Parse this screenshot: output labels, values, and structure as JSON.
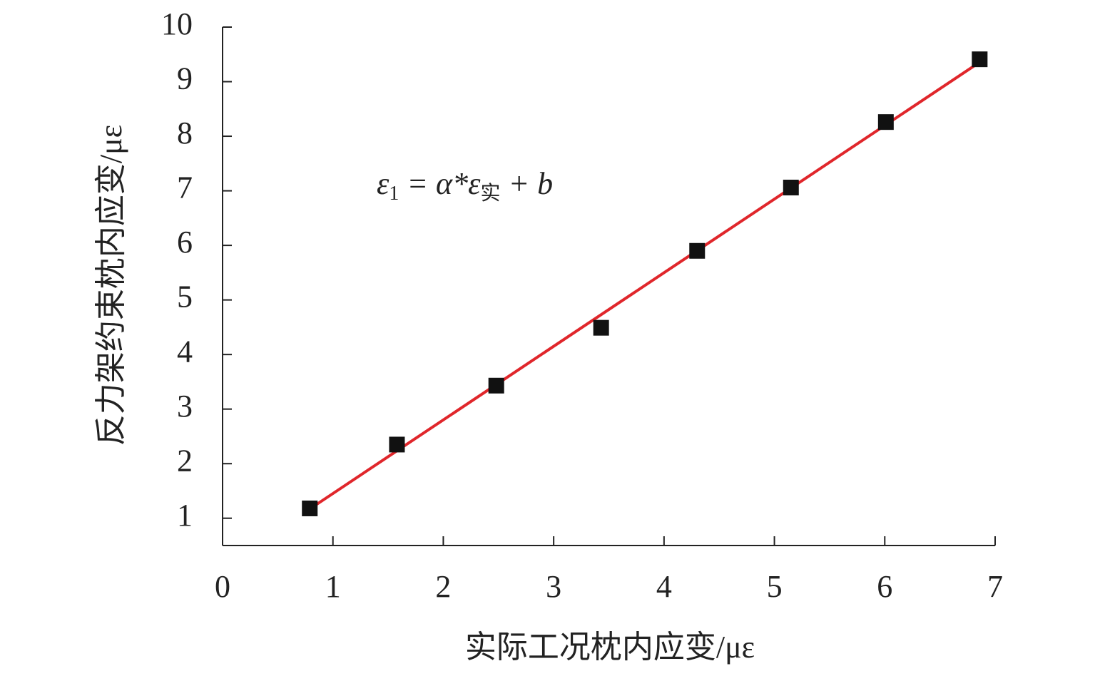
{
  "chart_data": {
    "type": "scatter",
    "x_label": "实际工况枕内应变/με",
    "y_label": "反力架约束枕内应变/με",
    "annotation": [
      "ε",
      "1",
      " = α*ε",
      "实",
      " + b"
    ],
    "series": [
      {
        "color": "#111111",
        "x": [
          0.79,
          1.58,
          2.48,
          3.43,
          4.3,
          5.15,
          6.01,
          6.86
        ],
        "values": [
          1.18,
          2.35,
          3.43,
          4.49,
          5.9,
          7.06,
          8.26,
          9.41
        ]
      }
    ],
    "fit": {
      "color": "#e0262b",
      "x": [
        0.79,
        6.87
      ],
      "values": [
        1.17,
        9.37
      ]
    },
    "xlim": [
      0,
      7
    ],
    "xticks": [
      0,
      1,
      2,
      3,
      4,
      5,
      6,
      7
    ],
    "ylim": [
      0.5,
      10
    ],
    "yticks": [
      1,
      2,
      3,
      4,
      5,
      6,
      7,
      8,
      9,
      10
    ]
  }
}
